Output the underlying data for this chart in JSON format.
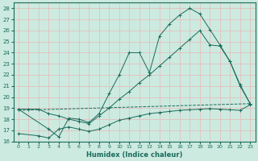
{
  "xlabel": "Humidex (Indice chaleur)",
  "xlim": [
    -0.5,
    23.5
  ],
  "ylim": [
    16,
    28.5
  ],
  "xticks": [
    0,
    1,
    2,
    3,
    4,
    5,
    6,
    7,
    8,
    9,
    10,
    11,
    12,
    13,
    14,
    15,
    16,
    17,
    18,
    19,
    20,
    21,
    22,
    23
  ],
  "yticks": [
    16,
    17,
    18,
    19,
    20,
    21,
    22,
    23,
    24,
    25,
    26,
    27,
    28
  ],
  "bg_color": "#cceae0",
  "grid_color": "#e8b8b8",
  "line_color": "#1a6b5a",
  "line_dashed": {
    "x": [
      0,
      23
    ],
    "y": [
      18.8,
      19.4
    ]
  },
  "line_low": {
    "x": [
      0,
      2,
      3,
      4,
      5,
      6,
      7,
      8,
      9,
      10,
      11,
      12,
      13,
      14,
      15,
      16,
      17,
      18,
      19,
      20,
      21,
      22,
      23
    ],
    "y": [
      16.7,
      16.5,
      16.3,
      17.1,
      17.3,
      17.1,
      16.9,
      17.1,
      17.5,
      17.9,
      18.1,
      18.3,
      18.5,
      18.6,
      18.7,
      18.8,
      18.85,
      18.9,
      18.95,
      18.9,
      18.85,
      18.8,
      19.3
    ]
  },
  "line_mid": {
    "x": [
      0,
      1,
      2,
      3,
      4,
      5,
      6,
      7,
      8,
      9,
      10,
      11,
      12,
      13,
      14,
      15,
      16,
      17,
      18,
      19,
      20,
      21,
      22,
      23
    ],
    "y": [
      18.9,
      18.9,
      18.9,
      18.5,
      18.3,
      18.0,
      17.8,
      17.6,
      18.3,
      19.0,
      19.8,
      20.5,
      21.3,
      22.0,
      22.8,
      23.6,
      24.4,
      25.2,
      26.0,
      24.7,
      24.6,
      23.2,
      21.1,
      19.4
    ]
  },
  "line_high": {
    "x": [
      0,
      3,
      4,
      5,
      6,
      7,
      8,
      9,
      10,
      11,
      12,
      13,
      14,
      15,
      16,
      17,
      18,
      19,
      20,
      21,
      22,
      23
    ],
    "y": [
      18.9,
      17.1,
      16.4,
      18.1,
      18.0,
      17.7,
      18.5,
      20.3,
      22.0,
      24.0,
      24.0,
      22.2,
      25.5,
      26.6,
      27.4,
      28.0,
      27.5,
      26.1,
      24.7,
      23.2,
      21.0,
      19.4
    ]
  }
}
